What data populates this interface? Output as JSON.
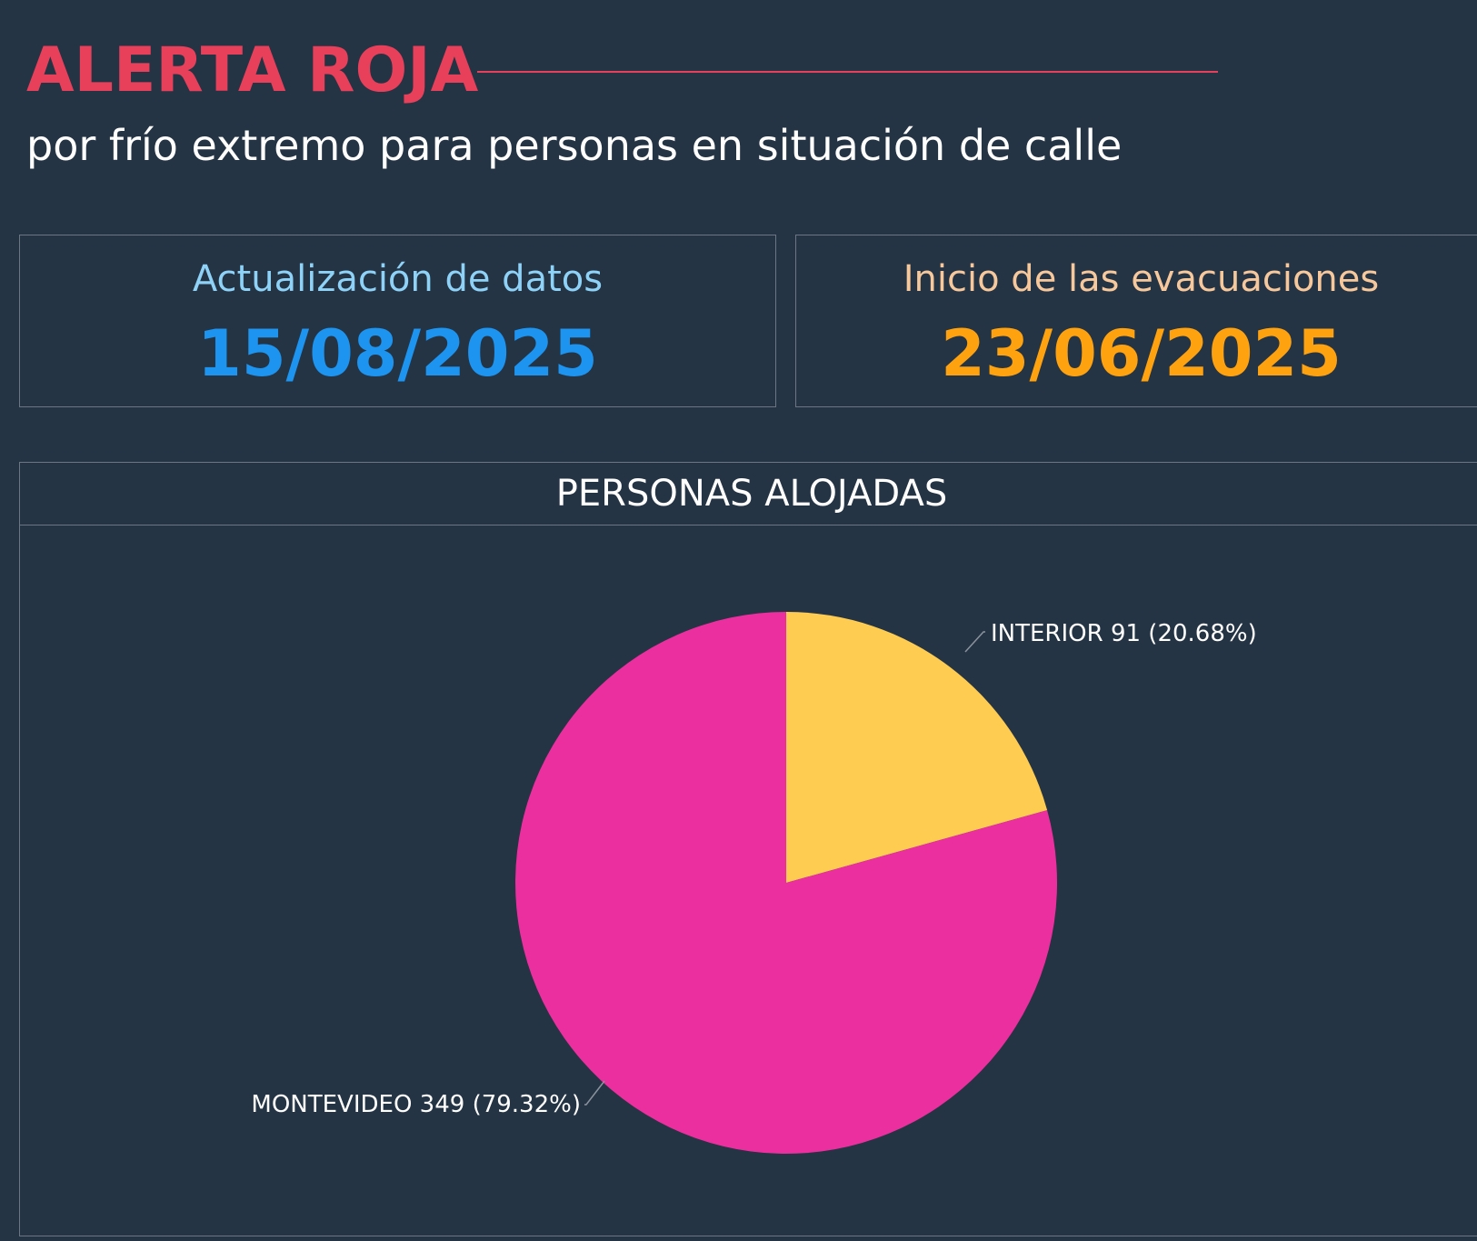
{
  "header": {
    "title": "ALERTA ROJA",
    "subtitle": "por frío extremo para personas en situación de calle",
    "title_color": "#e8405a"
  },
  "cards": {
    "update": {
      "label": "Actualización de datos",
      "value": "15/08/2025",
      "label_color": "#8fd2f7",
      "value_color": "#1d94ef"
    },
    "start": {
      "label": "Inicio de las evacuaciones",
      "value": "23/06/2025",
      "label_color": "#f6c89c",
      "value_color": "#ffa20f"
    }
  },
  "chart_data": {
    "type": "pie",
    "title": "PERSONAS ALOJADAS",
    "slices": [
      {
        "name": "INTERIOR",
        "value": 91,
        "percent": "20.68%",
        "label": "INTERIOR 91 (20.68%)",
        "color": "#ffcc52"
      },
      {
        "name": "MONTEVIDEO",
        "value": 349,
        "percent": "79.32%",
        "label": "MONTEVIDEO 349 (79.32%)",
        "color": "#ec2f9e"
      }
    ]
  }
}
